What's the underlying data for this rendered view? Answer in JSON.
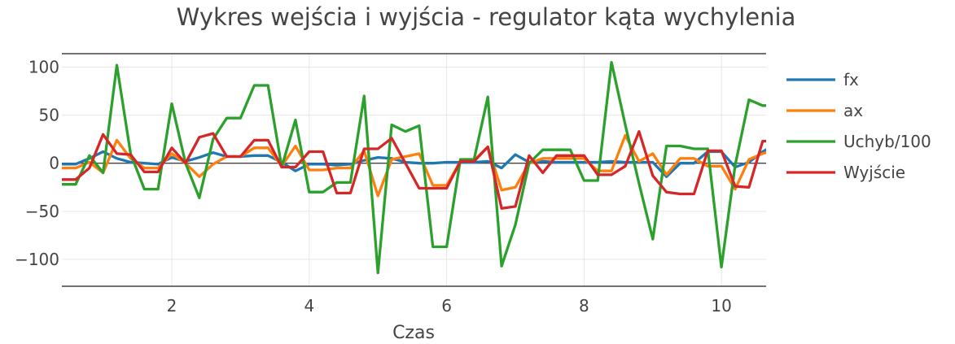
{
  "chart_data": {
    "type": "line",
    "title": "Wykres wejścia i wyjścia - regulator kąta wychylenia",
    "xlabel": "Czas",
    "ylabel": "",
    "xlim": [
      0.4,
      10.65
    ],
    "ylim": [
      -128,
      114
    ],
    "xticks": [
      2,
      4,
      6,
      8,
      10
    ],
    "xtick_labels": [
      "2",
      "4",
      "6",
      "8",
      "10"
    ],
    "yticks": [
      100,
      50,
      0,
      -50,
      -100
    ],
    "ytick_labels": [
      "100",
      "50",
      "0",
      "−50",
      "−100"
    ],
    "grid": true,
    "legend_position": "right",
    "x": [
      0.25,
      0.4,
      0.6,
      0.8,
      1.0,
      1.2,
      1.4,
      1.6,
      1.8,
      2.0,
      2.2,
      2.4,
      2.6,
      2.8,
      3.0,
      3.2,
      3.4,
      3.6,
      3.8,
      4.0,
      4.2,
      4.4,
      4.6,
      4.8,
      5.0,
      5.2,
      5.4,
      5.6,
      5.8,
      6.0,
      6.2,
      6.4,
      6.6,
      6.8,
      7.0,
      7.2,
      7.4,
      7.6,
      7.8,
      8.0,
      8.2,
      8.4,
      8.6,
      8.8,
      9.0,
      9.2,
      9.4,
      9.6,
      9.8,
      10.0,
      10.2,
      10.4,
      10.6,
      10.7
    ],
    "series": [
      {
        "name": "fx",
        "color": "#1f77b4",
        "values": [
          -1,
          -1,
          -1,
          5,
          12,
          5,
          1,
          0,
          -1,
          6,
          2,
          6,
          11,
          7,
          7,
          8,
          8,
          1,
          -8,
          -1,
          -1,
          -2,
          -1,
          3,
          6,
          5,
          1,
          0,
          0,
          1,
          1,
          1,
          2,
          -5,
          9,
          1,
          2,
          1,
          1,
          1,
          1,
          2,
          1,
          1,
          1,
          -14,
          0,
          0,
          12,
          12,
          -4,
          1,
          12,
          16
        ]
      },
      {
        "name": "ax",
        "color": "#ff7f0e",
        "values": [
          -5,
          -5,
          -5,
          1,
          -10,
          24,
          5,
          -5,
          -5,
          10,
          0,
          -14,
          -1,
          7,
          7,
          16,
          16,
          -3,
          18,
          -7,
          -7,
          -5,
          -5,
          13,
          -34,
          4,
          7,
          10,
          -23,
          -23,
          2,
          3,
          17,
          -28,
          -25,
          0,
          5,
          5,
          5,
          5,
          -8,
          -8,
          29,
          2,
          10,
          -12,
          5,
          5,
          -3,
          -3,
          -27,
          4,
          10,
          12
        ]
      },
      {
        "name": "Uchyb/100",
        "color": "#2ca02c",
        "values": [
          -22,
          -22,
          -22,
          8,
          -10,
          102,
          10,
          -27,
          -27,
          62,
          0,
          -36,
          25,
          47,
          47,
          81,
          81,
          -4,
          45,
          -30,
          -30,
          -20,
          -20,
          70,
          -114,
          40,
          33,
          39,
          -87,
          -87,
          4,
          4,
          69,
          -107,
          -64,
          0,
          14,
          14,
          14,
          -18,
          -18,
          105,
          40,
          -21,
          -79,
          18,
          18,
          15,
          15,
          -108,
          -2,
          66,
          60,
          60
        ]
      },
      {
        "name": "Wyjście",
        "color": "#d62728",
        "values": [
          -17,
          -17,
          -17,
          -5,
          30,
          10,
          9,
          -9,
          -9,
          16,
          0,
          27,
          31,
          7,
          7,
          24,
          24,
          -4,
          -4,
          12,
          12,
          -31,
          -31,
          15,
          15,
          26,
          0,
          -26,
          -26,
          -26,
          2,
          2,
          17,
          -47,
          -45,
          8,
          -10,
          8,
          8,
          8,
          -12,
          -12,
          -3,
          33,
          -13,
          -30,
          -32,
          -32,
          13,
          13,
          -24,
          -25,
          23,
          23
        ]
      }
    ]
  }
}
